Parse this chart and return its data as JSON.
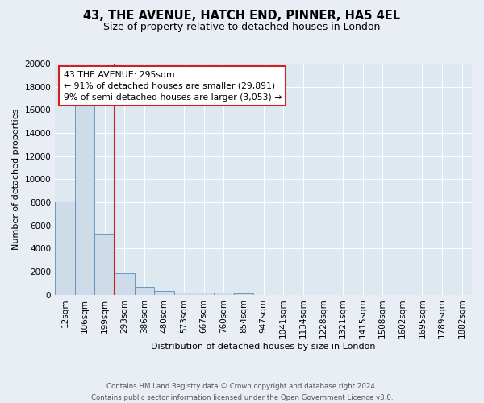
{
  "title": "43, THE AVENUE, HATCH END, PINNER, HA5 4EL",
  "subtitle": "Size of property relative to detached houses in London",
  "xlabel": "Distribution of detached houses by size in London",
  "ylabel": "Number of detached properties",
  "footer_line1": "Contains HM Land Registry data © Crown copyright and database right 2024.",
  "footer_line2": "Contains public sector information licensed under the Open Government Licence v3.0.",
  "bin_labels": [
    "12sqm",
    "106sqm",
    "199sqm",
    "293sqm",
    "386sqm",
    "480sqm",
    "573sqm",
    "667sqm",
    "760sqm",
    "854sqm",
    "947sqm",
    "1041sqm",
    "1134sqm",
    "1228sqm",
    "1321sqm",
    "1415sqm",
    "1508sqm",
    "1602sqm",
    "1695sqm",
    "1789sqm",
    "1882sqm"
  ],
  "bar_heights": [
    8100,
    16500,
    5300,
    1850,
    700,
    320,
    220,
    190,
    170,
    150,
    0,
    0,
    0,
    0,
    0,
    0,
    0,
    0,
    0,
    0,
    0
  ],
  "bar_color": "#cddce8",
  "bar_edge_color": "#5b8db8",
  "red_line_x": 2.5,
  "annotation_line1": "43 THE AVENUE: 295sqm",
  "annotation_line2": "← 91% of detached houses are smaller (29,891)",
  "annotation_line3": "9% of semi-detached houses are larger (3,053) →",
  "annotation_box_color": "white",
  "annotation_box_edge": "#cc2222",
  "ylim": [
    0,
    20000
  ],
  "yticks": [
    0,
    2000,
    4000,
    6000,
    8000,
    10000,
    12000,
    14000,
    16000,
    18000,
    20000
  ],
  "background_color": "#e8eef4",
  "plot_bg_color": "#dde8f0",
  "grid_color": "#ffffff",
  "red_line_color": "#cc2222",
  "title_fontsize": 10.5,
  "subtitle_fontsize": 9,
  "axis_label_fontsize": 8,
  "tick_fontsize": 7.5
}
